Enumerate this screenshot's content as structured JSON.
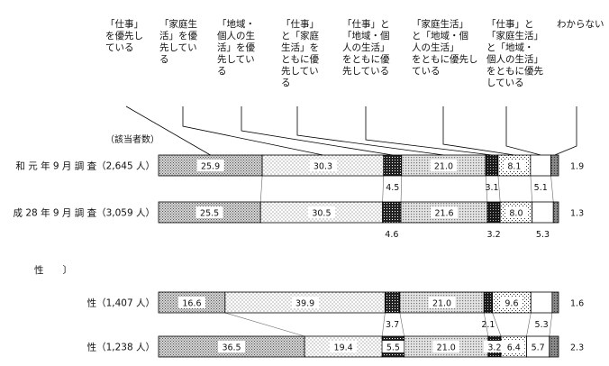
{
  "chart_data": {
    "type": "bar",
    "orientation": "horizontal",
    "stacked": true,
    "percent": true,
    "count_header": "（該当者数）",
    "legend": [
      [
        "「仕事」",
        "を優先し",
        "ている"
      ],
      [
        "「家庭生",
        "活」を優",
        "先してい",
        "る"
      ],
      [
        "「地域・",
        "個人の生",
        "活」を優",
        "先してい",
        "る"
      ],
      [
        "「仕事」",
        "と「家庭",
        "生活」を",
        "ともに優",
        "先してい",
        "る"
      ],
      [
        "「仕事」と",
        "「地域・個",
        "人の生活」",
        "をともに優",
        "先している"
      ],
      [
        "「家庭生活」",
        "と「地域・個",
        "人の生活」",
        "をともに優先し",
        "ている"
      ],
      [
        "「仕事」と",
        "「家庭生活」",
        "と「地域・",
        "個人の生活」",
        "をともに優先",
        "している"
      ],
      [
        "わからない"
      ]
    ],
    "section_label": "性　　〕",
    "rows": [
      {
        "label": "和 元 年 9 月 調 査",
        "n": "2,645 人",
        "values": [
          25.9,
          30.3,
          4.5,
          21.0,
          3.1,
          8.1,
          5.1,
          1.9
        ]
      },
      {
        "label": "成 28 年 9 月 調 査",
        "n": "3,059 人",
        "values": [
          25.5,
          30.5,
          4.6,
          21.6,
          3.2,
          8.0,
          5.3,
          1.3
        ]
      },
      {
        "label": "性",
        "n": "1,407 人",
        "values": [
          16.6,
          39.9,
          3.7,
          21.0,
          2.1,
          9.6,
          5.3,
          1.6
        ]
      },
      {
        "label": "性",
        "n": "1,238 人",
        "values": [
          36.5,
          19.4,
          5.5,
          21.0,
          3.2,
          6.4,
          5.7,
          2.3
        ]
      }
    ]
  }
}
